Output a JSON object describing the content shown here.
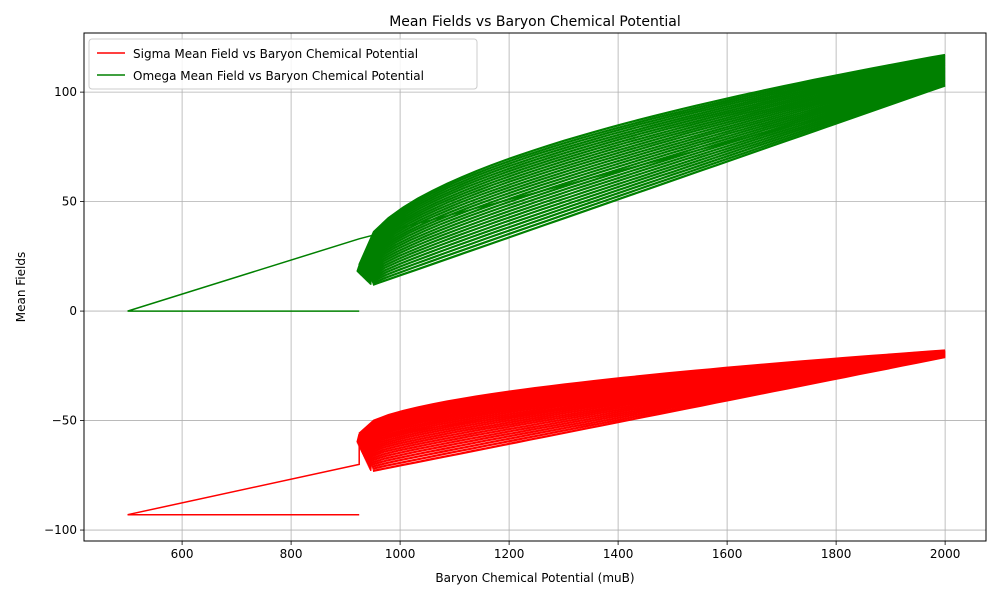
{
  "chart_data": {
    "type": "line",
    "title": "Mean Fields vs Baryon Chemical Potential",
    "xlabel": "Baryon Chemical Potential (muB)",
    "ylabel": "Mean Fields",
    "xlim": [
      420,
      2075
    ],
    "ylim": [
      -105,
      127
    ],
    "x_ticks": [
      600,
      800,
      1000,
      1200,
      1400,
      1600,
      1800,
      2000
    ],
    "x_tick_labels": [
      "600",
      "800",
      "1000",
      "1200",
      "1400",
      "1600",
      "1800",
      "2000"
    ],
    "y_ticks": [
      -100,
      -50,
      0,
      50,
      100
    ],
    "y_tick_labels": [
      "−100",
      "−50",
      "0",
      "50",
      "100"
    ],
    "grid": true,
    "legend_position": "top-left",
    "series": [
      {
        "name": "Sigma Mean Field vs Baryon Chemical Potential",
        "color": "#ff0000",
        "x": [
          925,
          500,
          925,
          925,
          2000
        ],
        "y": [
          -93,
          -93,
          -70,
          -58,
          -20
        ],
        "band": {
          "x_start": [
            925,
            950
          ],
          "y_start_upper": [
            -56,
            -60
          ],
          "y_start_lower": [
            -60,
            -73
          ],
          "x_end": 2000,
          "y_end_upper": -18,
          "y_end_lower": -21,
          "curve_upper": "concave",
          "curve_lower": "linear"
        }
      },
      {
        "name": "Omega Mean Field vs Baryon Chemical Potential",
        "color": "#008000",
        "x": [
          925,
          500,
          925,
          2000
        ],
        "y": [
          0,
          0,
          33,
          103
        ],
        "band": {
          "x_start": [
            925,
            950
          ],
          "y_start_upper": [
            21,
            25
          ],
          "y_start_lower": [
            18,
            12
          ],
          "x_end": 2000,
          "y_end_upper": 117,
          "y_end_lower": 103,
          "curve_upper": "concave",
          "curve_lower": "linear"
        }
      }
    ]
  }
}
